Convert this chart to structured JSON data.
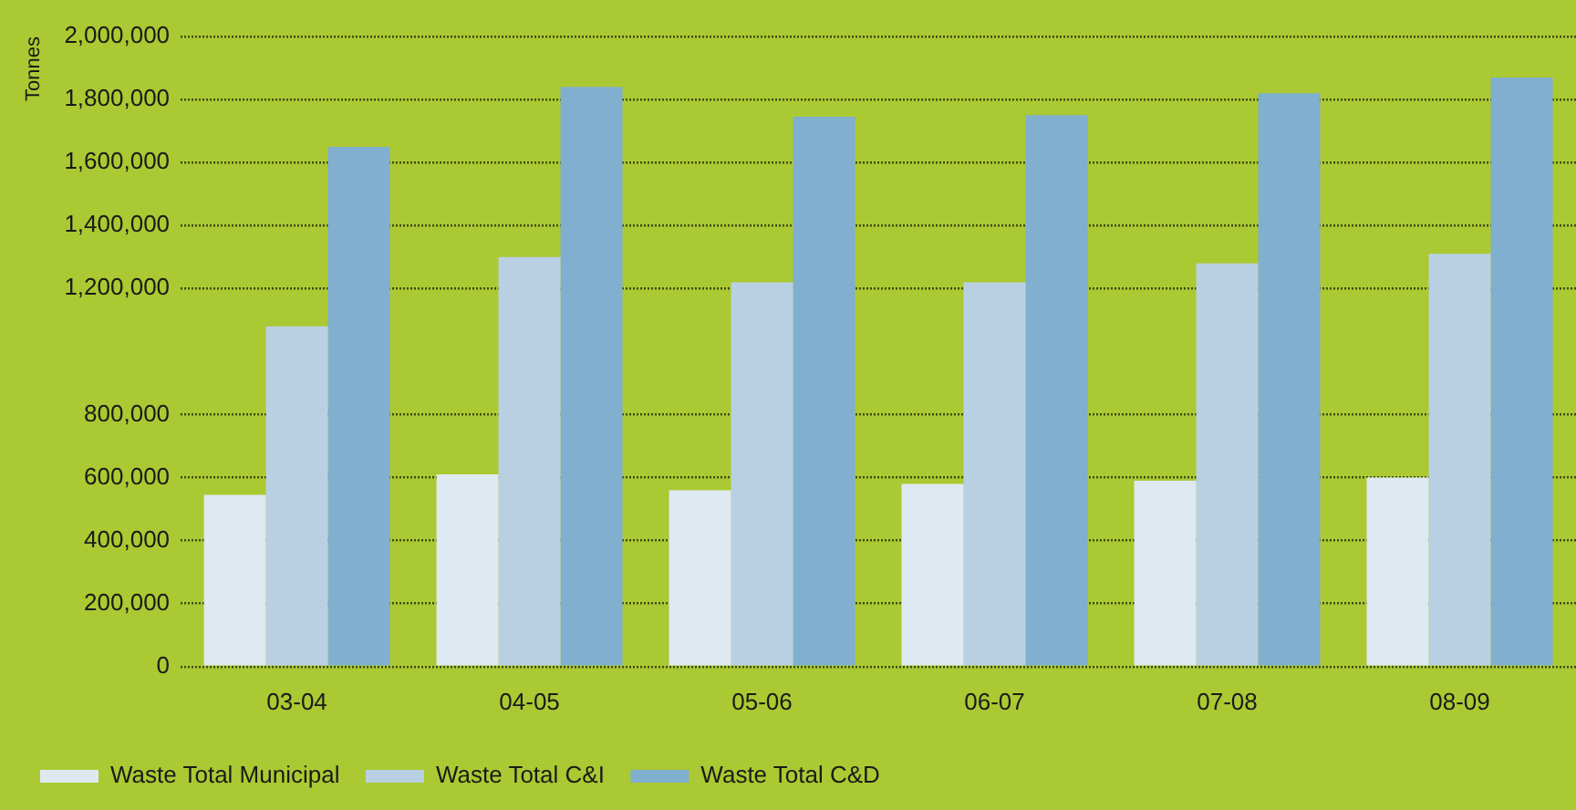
{
  "chart_data": {
    "type": "bar",
    "ylabel": "Tonnes",
    "categories": [
      "03-04",
      "04-05",
      "05-06",
      "06-07",
      "07-08",
      "08-09"
    ],
    "series": [
      {
        "name": "Waste Total Municipal",
        "color": "#dfe9f2",
        "values": [
          545000,
          610000,
          560000,
          580000,
          590000,
          600000
        ]
      },
      {
        "name": "Waste Total C&I",
        "color": "#b9d0e3",
        "values": [
          1080000,
          1300000,
          1220000,
          1220000,
          1280000,
          1310000
        ]
      },
      {
        "name": "Waste Total C&D",
        "color": "#80afcf",
        "values": [
          1650000,
          1840000,
          1745000,
          1750000,
          1820000,
          1870000
        ]
      }
    ],
    "ylim": [
      0,
      2000000
    ],
    "yticks": [
      0,
      {
        "value": 200000,
        "label": "200,000"
      },
      {
        "value": 400000,
        "label": "400,000"
      },
      {
        "value": 600000,
        "label": "600,000"
      },
      {
        "value": 800000,
        "label": "800,000"
      },
      {
        "value": 1200000,
        "label": "1,200,000"
      },
      {
        "value": 1400000,
        "label": "1,400,000"
      },
      {
        "value": 1600000,
        "label": "1,600,000"
      },
      {
        "value": 1800000,
        "label": "1,800,000"
      },
      {
        "value": 2000000,
        "label": "2,000,000"
      }
    ],
    "grid": "y",
    "legend": "bottom"
  }
}
